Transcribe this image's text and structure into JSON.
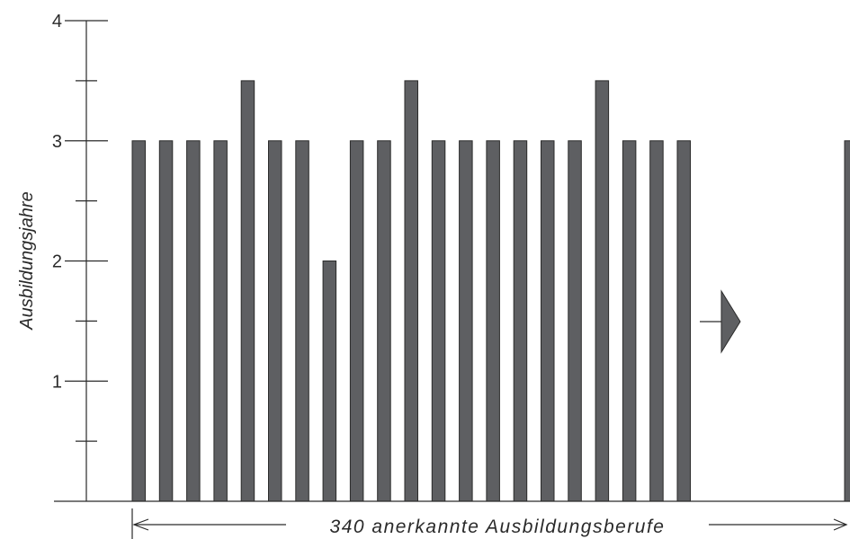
{
  "chart_data": {
    "type": "bar",
    "ylabel": "Ausbildungsjahre",
    "ylim": [
      0,
      4
    ],
    "y_major_ticks": [
      "1",
      "2",
      "3",
      "4"
    ],
    "y_minor_ticks": [
      0.5,
      1.5,
      2.5,
      3.5
    ],
    "values": [
      3,
      3,
      3,
      3,
      3.5,
      3,
      3,
      2,
      3,
      3,
      3.5,
      3,
      3,
      3,
      3,
      3,
      3,
      3.5,
      3,
      3,
      3
    ],
    "last_value": 3,
    "span_label": "340 anerkannte Ausbildungsberufe",
    "colors": {
      "bar": "#5e5f62",
      "line": "#2a2a2a"
    }
  }
}
